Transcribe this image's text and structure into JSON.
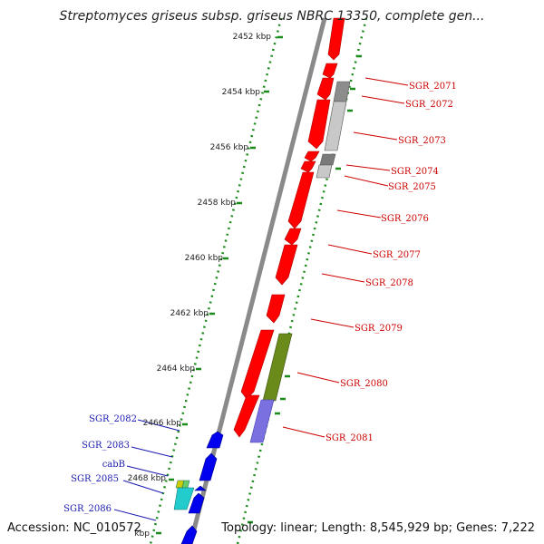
{
  "title": "Streptomyces griseus subsp. griseus NBRC 13350, complete gen...",
  "footer": {
    "accession": "Accession: NC_010572",
    "topology": "Topology: linear; Length: 8,545,929 bp; Genes: 7,222"
  },
  "colors": {
    "red_gene": "#ff0000",
    "blue_gene": "#0000ee",
    "gray_gene": "#8c8c8c",
    "light_gray_gene": "#c8c8c8",
    "olive_gene": "#6a8a1a",
    "slate_blue_gene": "#7a70e0",
    "cyan_gene": "#22cccc",
    "backbone": "#8a8a8a",
    "tick_green": "#1a8a1a",
    "label_red": "#cc0000",
    "label_blue": "#1a1ab0"
  },
  "axis_labels": [
    "2452 kbp",
    "2454 kbp",
    "2456 kbp",
    "2458 kbp",
    "2460 kbp",
    "2462 kbp",
    "2464 kbp",
    "2466 kbp",
    "2468 kbp",
    "kbp"
  ],
  "genes_right": [
    "SGR_2071",
    "SGR_2072",
    "SGR_2073",
    "SGR_2074",
    "SGR_2075",
    "SGR_2076",
    "SGR_2077",
    "SGR_2078",
    "SGR_2079",
    "SGR_2080",
    "SGR_2081"
  ],
  "genes_left": [
    "SGR_2082",
    "SGR_2083",
    "cabB",
    "SGR_2085",
    "SGR_2086"
  ]
}
